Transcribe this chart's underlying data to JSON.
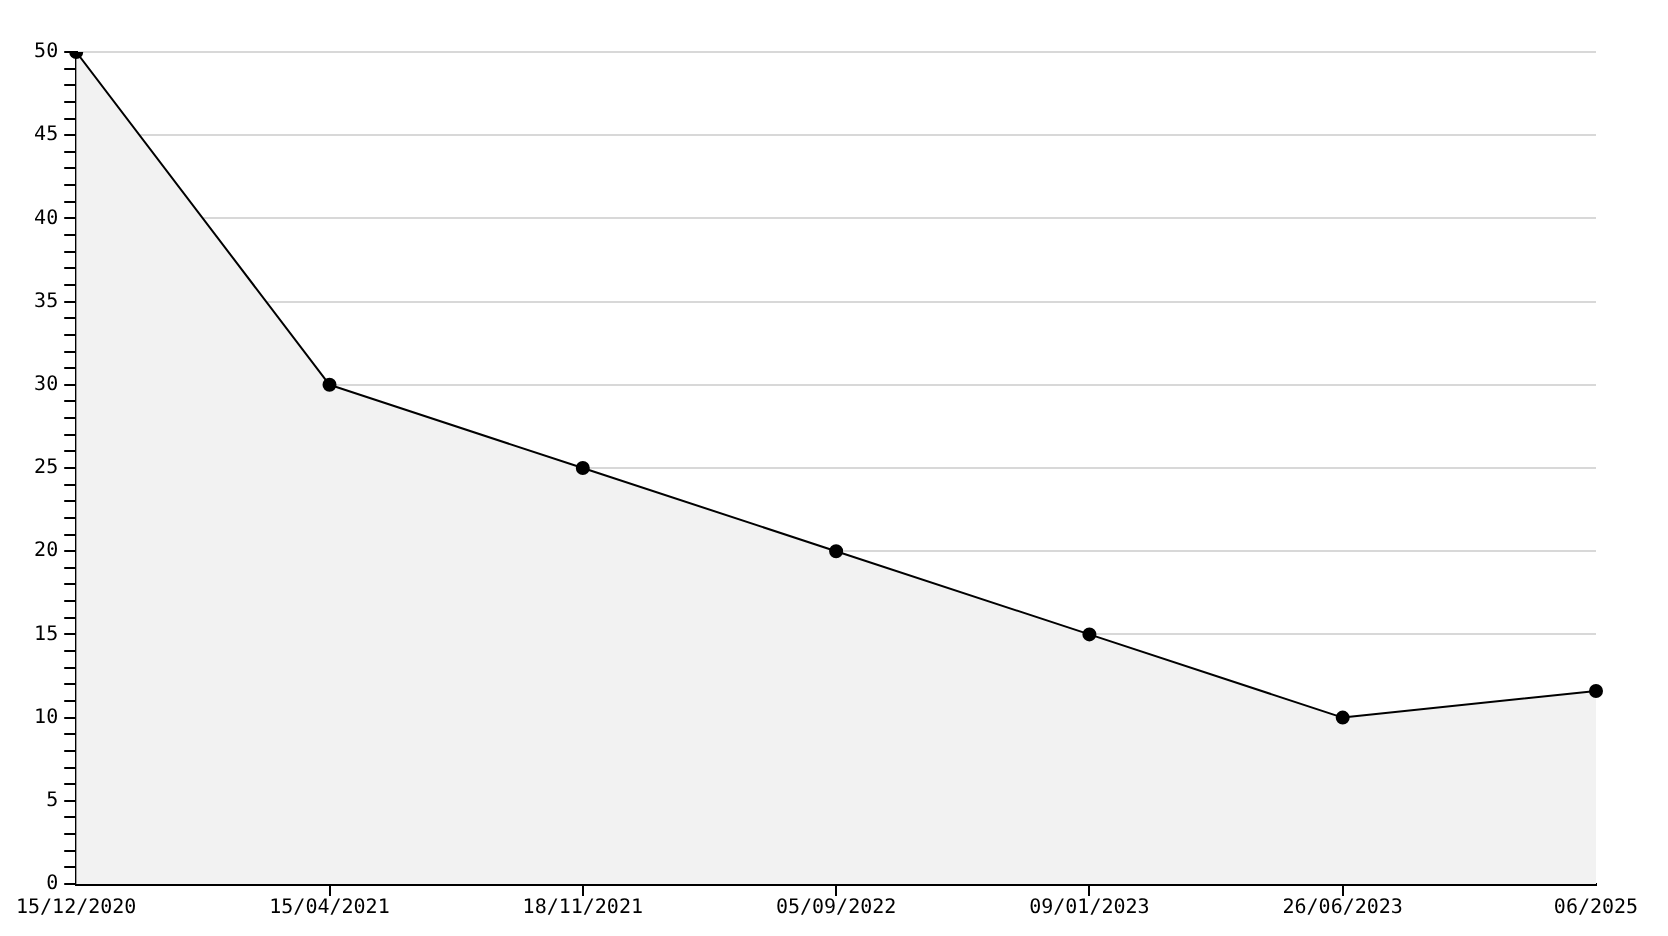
{
  "chart_data": {
    "type": "area",
    "categories": [
      "15/12/2020",
      "15/04/2021",
      "18/11/2021",
      "05/09/2022",
      "09/01/2023",
      "26/06/2023",
      "06/2025"
    ],
    "series": [
      {
        "color": "#000000",
        "values": [
          50,
          30,
          25,
          20,
          15,
          10,
          11.6
        ]
      }
    ],
    "ylim": [
      0,
      50
    ],
    "yticks": [
      0,
      {
        "value": 1,
        "label": null
      },
      {
        "value": 2,
        "label": null
      },
      {
        "value": 3,
        "label": null
      },
      {
        "value": 4,
        "label": null
      },
      5,
      {
        "value": 6,
        "label": null
      },
      {
        "value": 7,
        "label": null
      },
      {
        "value": 8,
        "label": null
      },
      {
        "value": 9,
        "label": null
      },
      10,
      {
        "value": 11,
        "label": null
      },
      {
        "value": 12,
        "label": null
      },
      {
        "value": 13,
        "label": null
      },
      {
        "value": 14,
        "label": null
      },
      15,
      {
        "value": 16,
        "label": null
      },
      {
        "value": 17,
        "label": null
      },
      {
        "value": 18,
        "label": null
      },
      {
        "value": 19,
        "label": null
      },
      20,
      {
        "value": 21,
        "label": null
      },
      {
        "value": 22,
        "label": null
      },
      {
        "value": 23,
        "label": null
      },
      {
        "value": 24,
        "label": null
      },
      25,
      {
        "value": 26,
        "label": null
      },
      {
        "value": 27,
        "label": null
      },
      {
        "value": 28,
        "label": null
      },
      {
        "value": 29,
        "label": null
      },
      30,
      {
        "value": 31,
        "label": null
      },
      {
        "value": 32,
        "label": null
      },
      {
        "value": 33,
        "label": null
      },
      {
        "value": 34,
        "label": null
      },
      35,
      {
        "value": 36,
        "label": null
      },
      {
        "value": 37,
        "label": null
      },
      {
        "value": 38,
        "label": null
      },
      {
        "value": 39,
        "label": null
      },
      40,
      {
        "value": 41,
        "label": null
      },
      {
        "value": 42,
        "label": null
      },
      {
        "value": 43,
        "label": null
      },
      {
        "value": 44,
        "label": null
      },
      45,
      {
        "value": 46,
        "label": null
      },
      {
        "value": 47,
        "label": null
      },
      {
        "value": 48,
        "label": null
      },
      {
        "value": 49,
        "label": null
      },
      50
    ],
    "grid": "y",
    "legend": false,
    "marker": "circle",
    "line_style": "solid"
  }
}
